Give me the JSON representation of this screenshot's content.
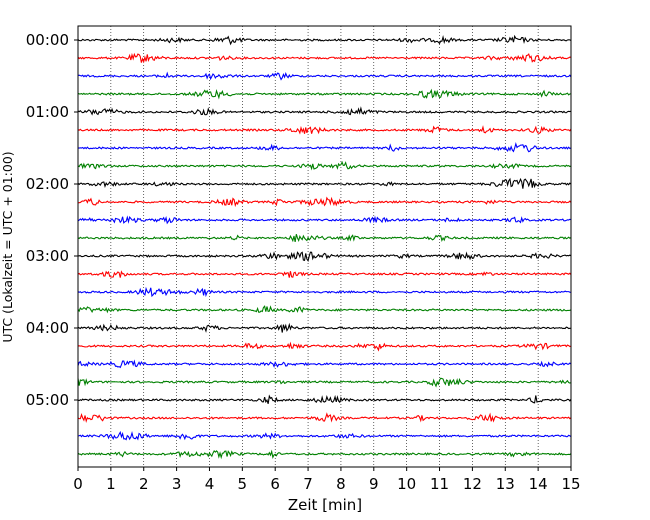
{
  "chart_data": {
    "type": "line",
    "title": "",
    "xlabel": "Zeit  [min]",
    "ylabel": "UTC (Lokalzeit = UTC + 01:00)",
    "xlim": [
      0,
      15
    ],
    "x_ticks": [
      0,
      1,
      2,
      3,
      4,
      5,
      6,
      7,
      8,
      9,
      10,
      11,
      12,
      13,
      14,
      15
    ],
    "y_tick_labels": [
      "00:00",
      "01:00",
      "02:00",
      "03:00",
      "04:00",
      "05:00"
    ],
    "traces_per_hour": 4,
    "trace_minutes": 15,
    "trace_count": 24,
    "series_colors": [
      "#000000",
      "#ff0000",
      "#0000ff",
      "#008000"
    ],
    "grid": {
      "x": "dotted",
      "y": false
    },
    "legend": "none"
  }
}
